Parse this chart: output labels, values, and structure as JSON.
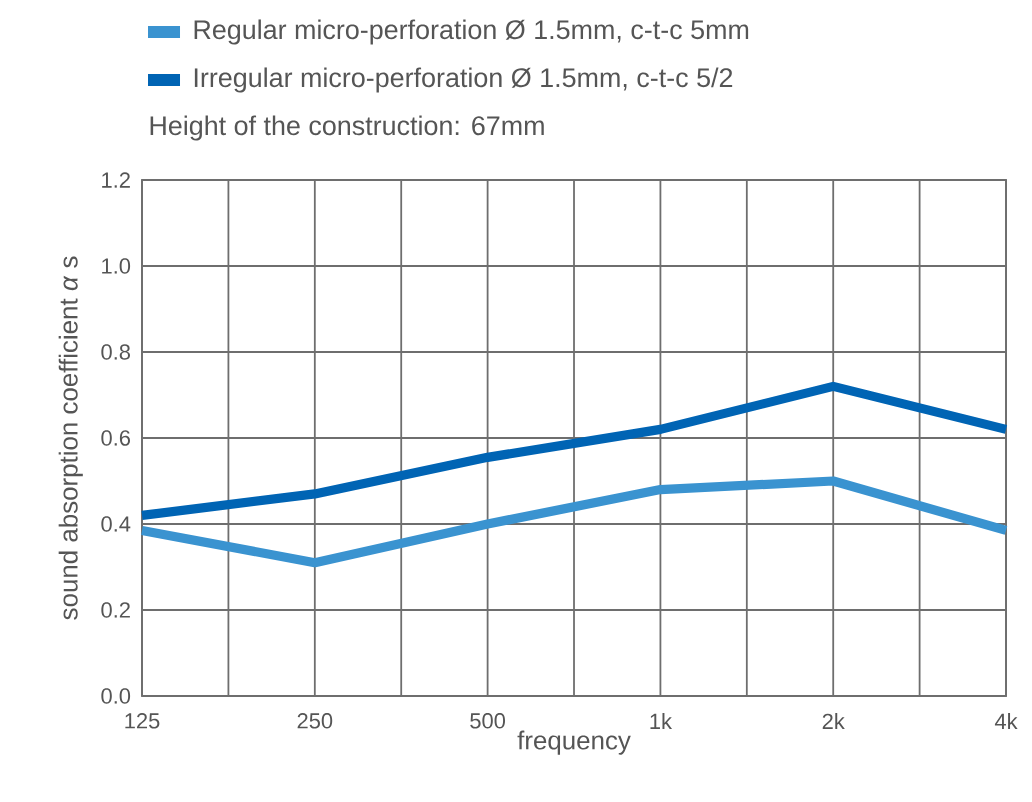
{
  "chart_data": {
    "type": "line",
    "categories": [
      "125",
      "250",
      "500",
      "1k",
      "2k",
      "4k"
    ],
    "xlabel": "frequency",
    "ylabel": "sound absorption coefficient *α* s",
    "series": [
      {
        "name": "Regular micro-perforation Ø 1.5mm, c-t-c 5mm",
        "color": "#3a93d0",
        "values": [
          0.385,
          0.31,
          0.4,
          0.48,
          0.5,
          0.385
        ]
      },
      {
        "name": "Irregular micro-perforation Ø 1.5mm, c-t-c 5/2",
        "color": "#0064b4",
        "values": [
          0.42,
          0.47,
          0.555,
          0.62,
          0.72,
          0.62
        ]
      }
    ],
    "ylim": [
      0,
      1.2
    ],
    "yticks": [
      {
        "value": 0,
        "label": "0.0"
      },
      0.2,
      0.4,
      0.6,
      0.8,
      {
        "value": 1,
        "label": "1.0"
      },
      1.2
    ],
    "grid": true,
    "legend": "top",
    "marker": "none",
    "line_style": "solid",
    "annotations": [
      "Height of the construction: 67mm"
    ]
  }
}
